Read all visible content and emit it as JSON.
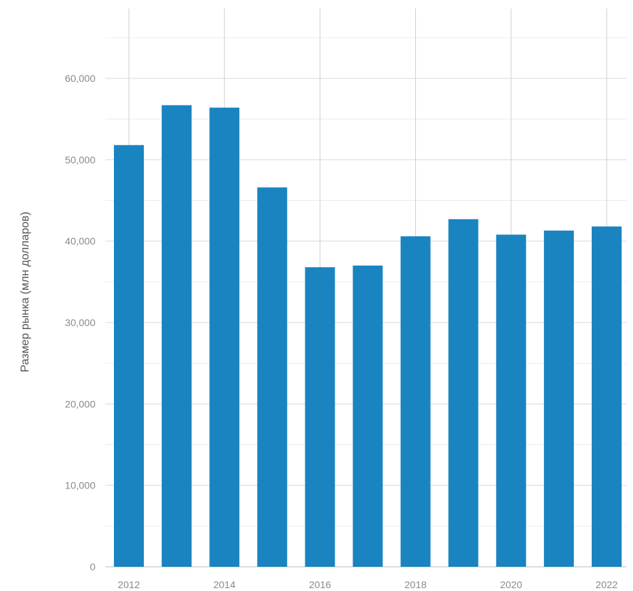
{
  "chart_data": {
    "type": "bar",
    "categories": [
      "2012",
      "2013",
      "2014",
      "2015",
      "2016",
      "2017",
      "2018",
      "2019",
      "2020",
      "2021",
      "2022"
    ],
    "values": [
      51800,
      56700,
      56400,
      46600,
      36800,
      37000,
      40600,
      42700,
      40800,
      41300,
      41800
    ],
    "title": "",
    "xlabel": "",
    "ylabel": "Размер рынка (млн долларов)",
    "ylim": [
      0,
      68000
    ],
    "yticks": [
      0,
      10000,
      20000,
      30000,
      40000,
      50000,
      60000
    ],
    "ytick_labels": [
      "0",
      "10,000",
      "20,000",
      "30,000",
      "40,000",
      "50,000",
      "60,000"
    ],
    "xtick_labels": [
      "2012",
      "2014",
      "2016",
      "2018",
      "2020",
      "2022"
    ],
    "grid": true,
    "legend": "none",
    "colors": {
      "bar": "#1a84c0"
    }
  }
}
